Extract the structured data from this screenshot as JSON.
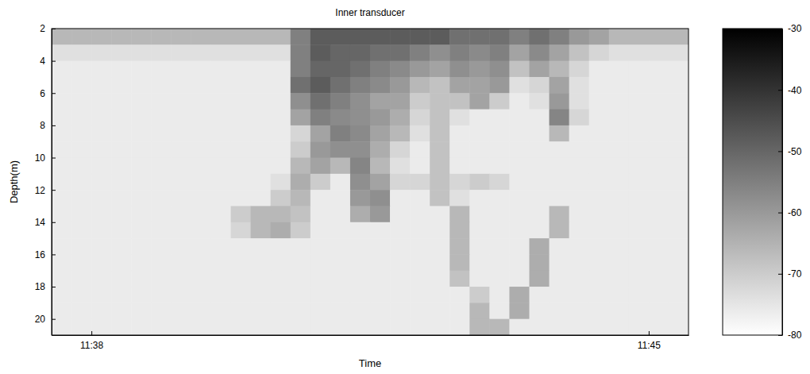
{
  "chart_data": {
    "type": "heatmap",
    "title": "Inner transducer",
    "x_label": "Time",
    "y_label": "Depth(m)",
    "xlim": [
      697.5,
      705.5
    ],
    "ylim": [
      2,
      21
    ],
    "xticks": [
      {
        "value": 698,
        "label": "11:38"
      },
      {
        "value": 705,
        "label": "11:45"
      }
    ],
    "yticks": [
      2,
      4,
      6,
      8,
      10,
      12,
      14,
      16,
      18,
      20
    ],
    "zlim": [
      -80,
      -30
    ],
    "zticks": [
      -30,
      -40,
      -50,
      -60,
      -70,
      -80
    ],
    "x": [
      697.625,
      697.875,
      698.125,
      698.375,
      698.625,
      698.875,
      699.125,
      699.375,
      699.625,
      699.875,
      700.125,
      700.375,
      700.625,
      700.875,
      701.125,
      701.375,
      701.625,
      701.875,
      702.125,
      702.375,
      702.625,
      702.875,
      703.125,
      703.375,
      703.625,
      703.875,
      704.125,
      704.375,
      704.625,
      704.875,
      705.125,
      705.375
    ],
    "y": [
      2.5,
      3.5,
      4.5,
      5.5,
      6.5,
      7.5,
      8.5,
      9.5,
      10.5,
      11.5,
      12.5,
      13.5,
      14.5,
      15.5,
      16.5,
      17.5,
      18.5,
      19.5,
      20.5
    ],
    "z": [
      [
        -66,
        -66,
        -66,
        -66,
        -66,
        -66,
        -66,
        -66,
        -66,
        -66,
        -66,
        -66,
        -55,
        -48,
        -48,
        -48,
        -48,
        -48,
        -48,
        -48,
        -52,
        -52,
        -52,
        -55,
        -52,
        -55,
        -60,
        -62,
        -66,
        -66,
        -66,
        -66
      ],
      [
        -74,
        -74,
        -74,
        -74,
        -74,
        -74,
        -74,
        -74,
        -74,
        -74,
        -74,
        -74,
        -55,
        -48,
        -50,
        -50,
        -52,
        -52,
        -55,
        -58,
        -55,
        -57,
        -55,
        -62,
        -57,
        -62,
        -68,
        -72,
        -74,
        -74,
        -74,
        -74
      ],
      [
        -76,
        -76,
        -76,
        -76,
        -76,
        -76,
        -76,
        -76,
        -76,
        -76,
        -76,
        -76,
        -55,
        -50,
        -50,
        -52,
        -55,
        -57,
        -60,
        -62,
        -58,
        -60,
        -58,
        -68,
        -62,
        -66,
        -72,
        -76,
        -76,
        -76,
        -76,
        -76
      ],
      [
        -76,
        -76,
        -76,
        -76,
        -76,
        -76,
        -76,
        -76,
        -76,
        -76,
        -76,
        -76,
        -52,
        -48,
        -52,
        -55,
        -57,
        -60,
        -66,
        -68,
        -62,
        -62,
        -60,
        -74,
        -72,
        -62,
        -74,
        -76,
        -76,
        -76,
        -76,
        -76
      ],
      [
        -76,
        -76,
        -76,
        -76,
        -76,
        -76,
        -76,
        -76,
        -76,
        -76,
        -76,
        -76,
        -58,
        -52,
        -55,
        -58,
        -62,
        -62,
        -70,
        -68,
        -68,
        -62,
        -70,
        -76,
        -74,
        -60,
        -74,
        -76,
        -76,
        -76,
        -76,
        -76
      ],
      [
        -76,
        -76,
        -76,
        -76,
        -76,
        -76,
        -76,
        -76,
        -76,
        -76,
        -76,
        -76,
        -62,
        -55,
        -57,
        -58,
        -60,
        -64,
        -72,
        -68,
        -74,
        -76,
        -76,
        -76,
        -76,
        -56,
        -72,
        -76,
        -76,
        -76,
        -76,
        -76
      ],
      [
        -76,
        -76,
        -76,
        -76,
        -76,
        -76,
        -76,
        -76,
        -76,
        -76,
        -76,
        -76,
        -72,
        -62,
        -55,
        -57,
        -62,
        -66,
        -74,
        -68,
        -76,
        -76,
        -76,
        -76,
        -76,
        -66,
        -76,
        -76,
        -76,
        -76,
        -76,
        -76
      ],
      [
        -76,
        -76,
        -76,
        -76,
        -76,
        -76,
        -76,
        -76,
        -76,
        -76,
        -76,
        -76,
        -70,
        -60,
        -58,
        -58,
        -64,
        -72,
        -76,
        -68,
        -76,
        -76,
        -76,
        -76,
        -76,
        -76,
        -76,
        -76,
        -76,
        -76,
        -76,
        -76
      ],
      [
        -76,
        -76,
        -76,
        -76,
        -76,
        -76,
        -76,
        -76,
        -76,
        -76,
        -76,
        -76,
        -66,
        -62,
        -66,
        -56,
        -66,
        -74,
        -76,
        -68,
        -76,
        -76,
        -76,
        -76,
        -76,
        -76,
        -76,
        -76,
        -76,
        -76,
        -76,
        -76
      ],
      [
        -76,
        -76,
        -76,
        -76,
        -76,
        -76,
        -76,
        -76,
        -76,
        -76,
        -76,
        -74,
        -64,
        -70,
        -76,
        -58,
        -62,
        -72,
        -72,
        -68,
        -72,
        -70,
        -72,
        -76,
        -76,
        -76,
        -76,
        -76,
        -76,
        -76,
        -76,
        -76
      ],
      [
        -76,
        -76,
        -76,
        -76,
        -76,
        -76,
        -76,
        -76,
        -76,
        -76,
        -76,
        -70,
        -66,
        -76,
        -76,
        -60,
        -58,
        -76,
        -76,
        -68,
        -74,
        -76,
        -76,
        -76,
        -76,
        -76,
        -76,
        -76,
        -76,
        -76,
        -76,
        -76
      ],
      [
        -76,
        -76,
        -76,
        -76,
        -76,
        -76,
        -76,
        -76,
        -76,
        -70,
        -66,
        -66,
        -68,
        -76,
        -76,
        -64,
        -60,
        -76,
        -76,
        -76,
        -66,
        -76,
        -76,
        -76,
        -76,
        -66,
        -76,
        -76,
        -76,
        -76,
        -76,
        -76
      ],
      [
        -76,
        -76,
        -76,
        -76,
        -76,
        -76,
        -76,
        -76,
        -76,
        -72,
        -66,
        -64,
        -70,
        -76,
        -76,
        -76,
        -76,
        -76,
        -76,
        -76,
        -66,
        -76,
        -76,
        -76,
        -76,
        -66,
        -76,
        -76,
        -76,
        -76,
        -76,
        -76
      ],
      [
        -76,
        -76,
        -76,
        -76,
        -76,
        -76,
        -76,
        -76,
        -76,
        -76,
        -76,
        -76,
        -76,
        -76,
        -76,
        -76,
        -76,
        -76,
        -76,
        -76,
        -66,
        -76,
        -76,
        -76,
        -64,
        -76,
        -76,
        -76,
        -76,
        -76,
        -76,
        -76
      ],
      [
        -76,
        -76,
        -76,
        -76,
        -76,
        -76,
        -76,
        -76,
        -76,
        -76,
        -76,
        -76,
        -76,
        -76,
        -76,
        -76,
        -76,
        -76,
        -76,
        -76,
        -66,
        -76,
        -76,
        -76,
        -64,
        -76,
        -76,
        -76,
        -76,
        -76,
        -76,
        -76
      ],
      [
        -76,
        -76,
        -76,
        -76,
        -76,
        -76,
        -76,
        -76,
        -76,
        -76,
        -76,
        -76,
        -76,
        -76,
        -76,
        -76,
        -76,
        -76,
        -76,
        -76,
        -68,
        -76,
        -76,
        -76,
        -64,
        -76,
        -76,
        -76,
        -76,
        -76,
        -76,
        -76
      ],
      [
        -76,
        -76,
        -76,
        -76,
        -76,
        -76,
        -76,
        -76,
        -76,
        -76,
        -76,
        -76,
        -76,
        -76,
        -76,
        -76,
        -76,
        -76,
        -76,
        -76,
        -76,
        -70,
        -76,
        -64,
        -76,
        -76,
        -76,
        -76,
        -76,
        -76,
        -76,
        -76
      ],
      [
        -76,
        -76,
        -76,
        -76,
        -76,
        -76,
        -76,
        -76,
        -76,
        -76,
        -76,
        -76,
        -76,
        -76,
        -76,
        -76,
        -76,
        -76,
        -76,
        -76,
        -76,
        -66,
        -76,
        -64,
        -76,
        -76,
        -76,
        -76,
        -76,
        -76,
        -76,
        -76
      ],
      [
        -76,
        -76,
        -76,
        -76,
        -76,
        -76,
        -76,
        -76,
        -76,
        -76,
        -76,
        -76,
        -76,
        -76,
        -76,
        -76,
        -76,
        -76,
        -76,
        -76,
        -76,
        -66,
        -66,
        -76,
        -76,
        -76,
        -76,
        -76,
        -76,
        -76,
        -76,
        -76
      ]
    ]
  }
}
